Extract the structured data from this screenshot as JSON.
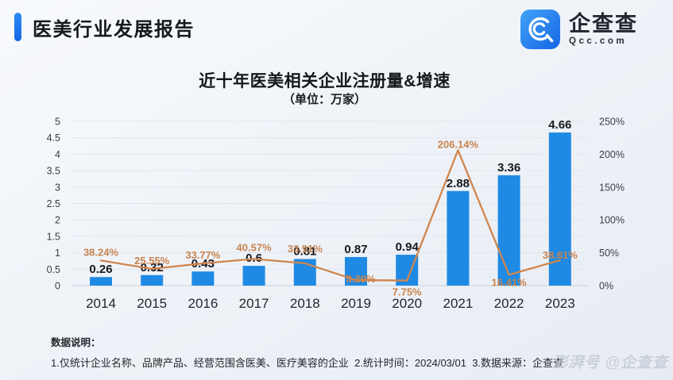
{
  "header": {
    "report_title": "医美行业发展报告",
    "logo": {
      "name": "企查查",
      "domain": "Qcc.com"
    }
  },
  "chart_data": {
    "type": "bar",
    "combo": "bar+line",
    "title": "近十年医美相关企业注册量&增速",
    "subtitle": "（单位：万家）",
    "categories": [
      "2014",
      "2015",
      "2016",
      "2017",
      "2018",
      "2019",
      "2020",
      "2021",
      "2022",
      "2023"
    ],
    "series": [
      {
        "name": "注册量(万家)",
        "type": "bar",
        "values": [
          0.26,
          0.32,
          0.43,
          0.6,
          0.81,
          0.87,
          0.94,
          2.88,
          3.36,
          4.66
        ]
      },
      {
        "name": "增速(%)",
        "type": "line",
        "suffix": "%",
        "values": [
          38.24,
          25.55,
          33.77,
          40.57,
          33.91,
          8.39,
          7.75,
          206.14,
          16.41,
          38.61
        ]
      }
    ],
    "y_left": {
      "min": 0,
      "max": 5,
      "step": 0.5
    },
    "y_right": {
      "min": 0,
      "max": 250,
      "step": 50,
      "suffix": "%"
    },
    "grid": true,
    "legend_position": "none"
  },
  "footer": {
    "note_label": "数据说明：",
    "notes": "1.仅统计企业名称、品牌产品、经营范围含医美、医疗美容的企业  2.统计时间：2024/03/01  3.数据来源：企查查",
    "watermark": "澎湃号 @企查查"
  },
  "colors": {
    "accent": "#1677F0",
    "bar": "#1E8AE4",
    "line": "#D0854C",
    "line_label": "#C8834E",
    "grid": "#E2E6ED",
    "axis": "#CBD1DA",
    "text": "#23262B"
  }
}
